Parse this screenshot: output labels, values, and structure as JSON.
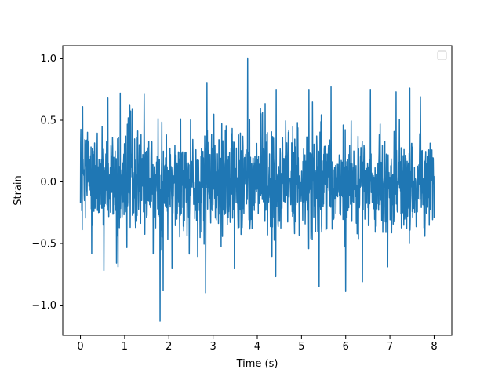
{
  "chart_data": {
    "type": "line",
    "title": "",
    "xlabel": "Time (s)",
    "ylabel": "Strain",
    "xlim": [
      -0.4,
      8.4
    ],
    "ylim": [
      -1.245,
      1.105
    ],
    "x_ticks": [
      0,
      1,
      2,
      3,
      4,
      5,
      6,
      7,
      8
    ],
    "x_tick_labels": [
      "0",
      "1",
      "2",
      "3",
      "4",
      "5",
      "6",
      "7",
      "8"
    ],
    "y_ticks": [
      -1.0,
      -0.5,
      0.0,
      0.5,
      1.0
    ],
    "y_tick_labels": [
      "−1.0",
      "−0.5",
      "0.0",
      "0.5",
      "1.0"
    ],
    "grid": false,
    "legend": {
      "placement": "top-right",
      "entries": []
    },
    "series": [
      {
        "color": "#1f77b4",
        "x_start": 0.0,
        "x_end": 8.0,
        "samples": 1600,
        "mean": 0.0,
        "std": 0.2,
        "max": {
          "x": 3.78,
          "y": 1.0
        },
        "min": {
          "x": 1.8,
          "y": -1.13
        },
        "extremes": [
          {
            "x": 0.05,
            "y": 0.61
          },
          {
            "x": 0.62,
            "y": 0.68
          },
          {
            "x": 0.9,
            "y": 0.72
          },
          {
            "x": 1.44,
            "y": 0.71
          },
          {
            "x": 2.86,
            "y": 0.8
          },
          {
            "x": 3.78,
            "y": 1.0
          },
          {
            "x": 4.43,
            "y": 0.75
          },
          {
            "x": 5.17,
            "y": 0.75
          },
          {
            "x": 5.67,
            "y": 0.77
          },
          {
            "x": 6.56,
            "y": 0.75
          },
          {
            "x": 7.14,
            "y": 0.73
          },
          {
            "x": 7.45,
            "y": 0.76
          },
          {
            "x": 7.69,
            "y": 0.69
          },
          {
            "x": 1.8,
            "y": -1.13
          },
          {
            "x": 1.87,
            "y": -0.88
          },
          {
            "x": 2.83,
            "y": -0.9
          },
          {
            "x": 5.4,
            "y": -1.02
          },
          {
            "x": 5.4,
            "y": -0.85
          },
          {
            "x": 6.0,
            "y": -0.89
          },
          {
            "x": 6.38,
            "y": -0.81
          },
          {
            "x": 0.53,
            "y": -0.72
          },
          {
            "x": 0.85,
            "y": -0.69
          },
          {
            "x": 2.07,
            "y": -0.7
          },
          {
            "x": 3.48,
            "y": -0.7
          },
          {
            "x": 4.42,
            "y": -0.77
          },
          {
            "x": 6.95,
            "y": -0.69
          }
        ]
      }
    ]
  }
}
